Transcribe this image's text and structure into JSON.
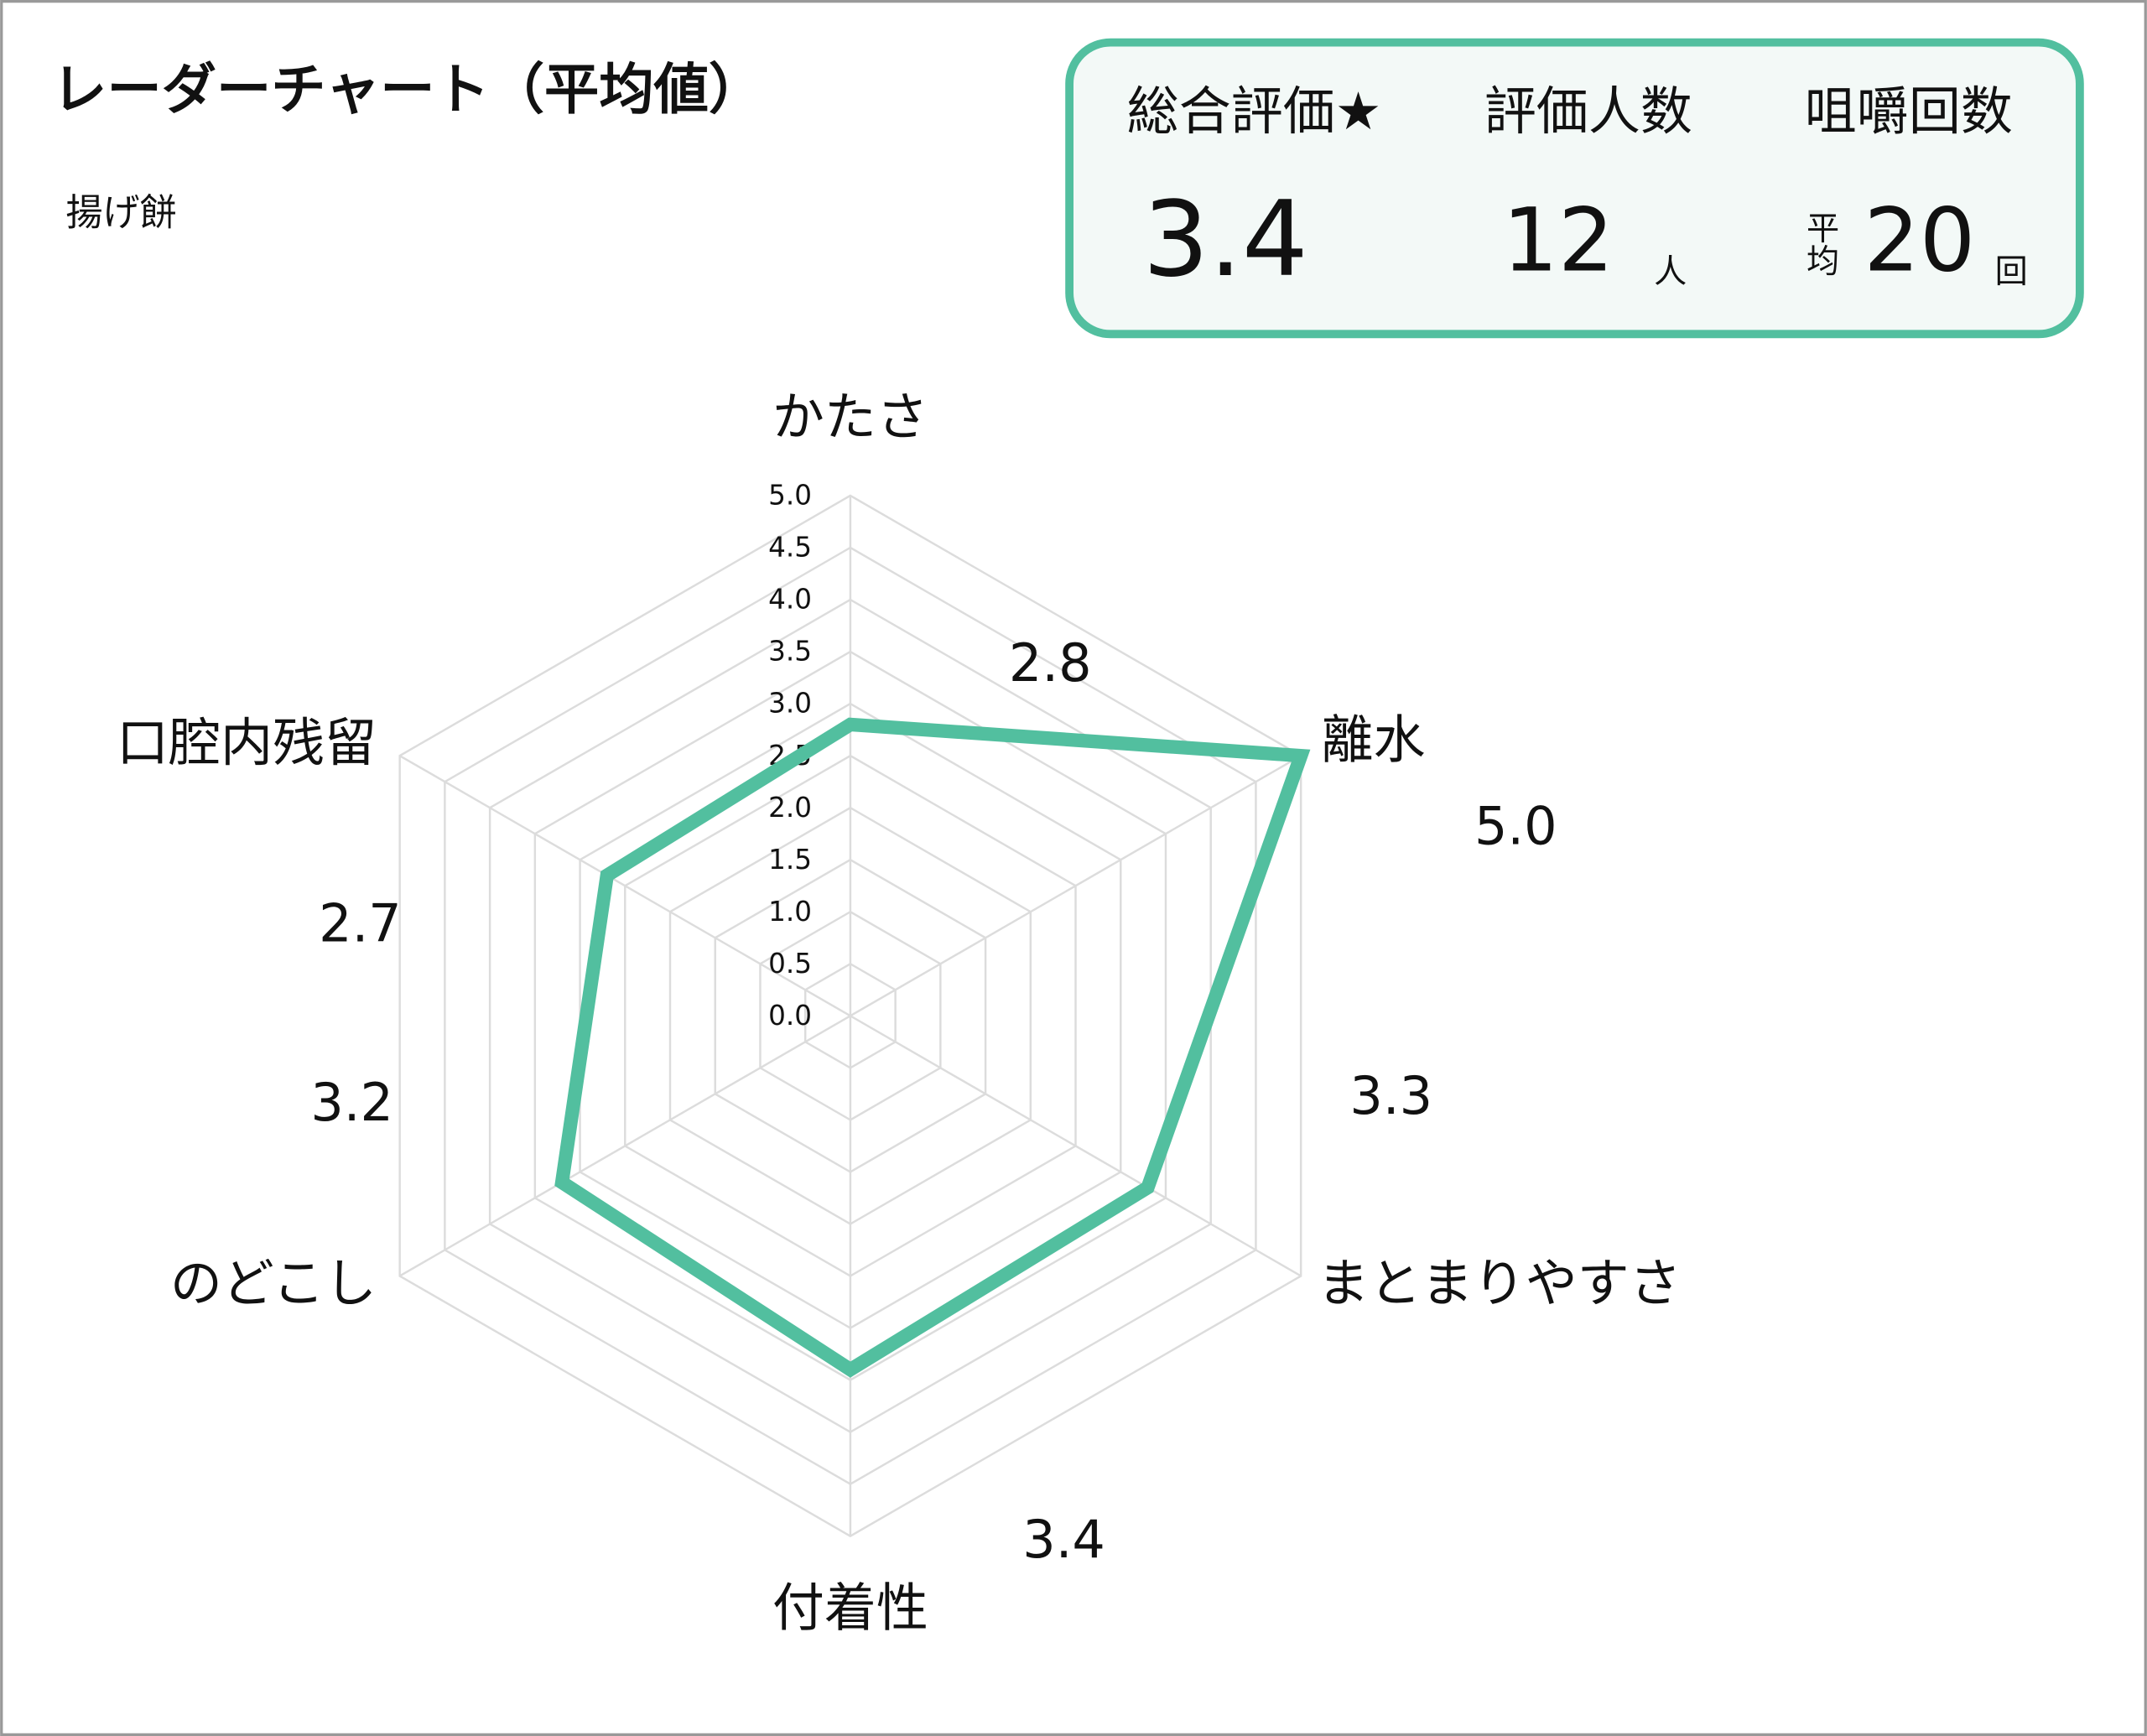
{
  "chart_data": {
    "type": "radar",
    "title": "レーダーチャート（平均値）",
    "subtitle": "揚げ餅",
    "categories": [
      "かたさ",
      "離水",
      "まとまりやすさ",
      "付着性",
      "のどこし",
      "口腔内残留"
    ],
    "values": [
      2.8,
      5.0,
      3.3,
      3.4,
      3.2,
      2.7
    ],
    "value_labels": [
      "2.8",
      "5.0",
      "3.3",
      "3.4",
      "3.2",
      "2.7"
    ],
    "color": "#52bf9f",
    "ylim": [
      0,
      5
    ],
    "yticks": [
      {
        "value": 0,
        "label": "0.0"
      },
      {
        "value": 0.5,
        "label": "0.5"
      },
      {
        "value": 1,
        "label": "1.0"
      },
      {
        "value": 1.5,
        "label": "1.5"
      },
      {
        "value": 2,
        "label": "2.0"
      },
      {
        "value": 2.5,
        "label": "2.5"
      },
      {
        "value": 3,
        "label": "3.0"
      },
      {
        "value": 3.5,
        "label": "3.5"
      },
      {
        "value": 4,
        "label": "4.0"
      },
      {
        "value": 4.5,
        "label": "4.5"
      },
      {
        "value": 5,
        "label": "5.0"
      }
    ],
    "grid": true
  },
  "summary": {
    "items": [
      {
        "label": "総合評価★",
        "value": "3.4"
      },
      {
        "label": "評価人数",
        "value": "12",
        "unit": "人"
      },
      {
        "label": "咀嚼回数",
        "prefix": "平均",
        "value": "20",
        "unit": "回"
      }
    ]
  }
}
